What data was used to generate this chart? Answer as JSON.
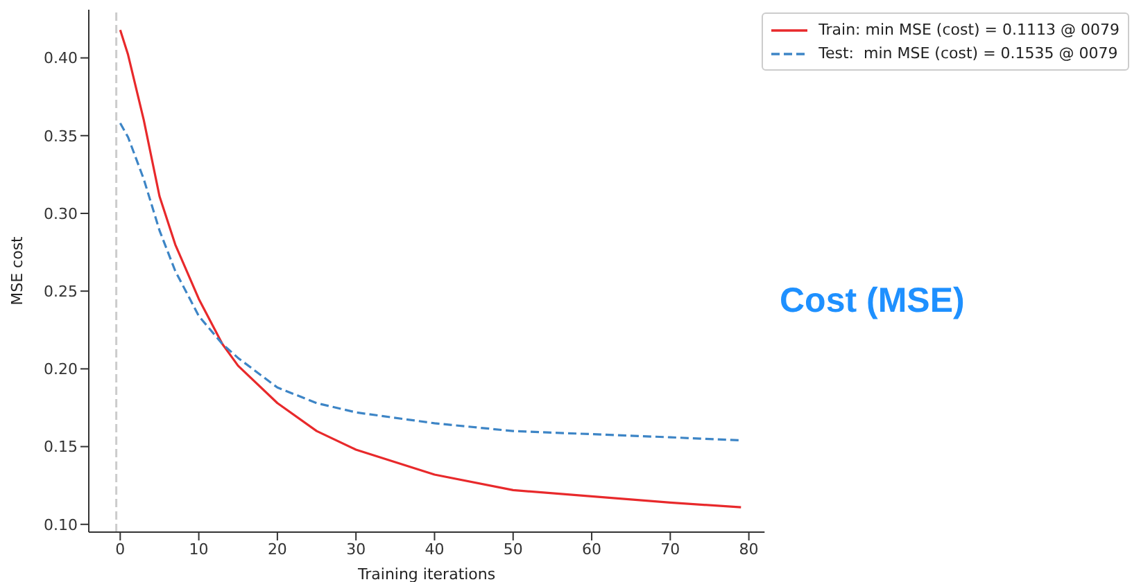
{
  "chart_data": {
    "type": "line",
    "xlabel": "Training iterations",
    "ylabel": "MSE cost",
    "xlim": [
      -4,
      82
    ],
    "xticks": [
      0,
      10,
      20,
      30,
      40,
      50,
      60,
      70,
      80
    ],
    "ylim": [
      0.095,
      0.431
    ],
    "yticks": [
      {
        "value": 0.1,
        "label": "0.10"
      },
      {
        "value": 0.15,
        "label": "0.15"
      },
      {
        "value": 0.2,
        "label": "0.20"
      },
      {
        "value": 0.25,
        "label": "0.25"
      },
      {
        "value": 0.3,
        "label": "0.30"
      },
      {
        "value": 0.35,
        "label": "0.35"
      },
      {
        "value": 0.4,
        "label": "0.40"
      }
    ],
    "grid": false,
    "legend": "top right",
    "marker": "none",
    "ref_lines": [
      {
        "axis": "x",
        "value": -0.5,
        "color": "#cccccc",
        "line_style": "dashed"
      }
    ],
    "annotations": [
      "Cost (MSE)"
    ],
    "series": [
      {
        "name": "Train: min MSE (cost) = 0.1113 @ 0079",
        "color": "#e8292b",
        "line_style": "solid",
        "x": [
          0,
          1,
          3,
          5,
          7,
          10,
          13,
          15,
          20,
          25,
          30,
          40,
          50,
          60,
          70,
          79
        ],
        "values": [
          0.418,
          0.402,
          0.36,
          0.311,
          0.28,
          0.245,
          0.216,
          0.202,
          0.178,
          0.16,
          0.148,
          0.132,
          0.122,
          0.118,
          0.114,
          0.111
        ]
      },
      {
        "name": "Test:  min MSE (cost) = 0.1535 @ 0079",
        "color": "#3d85c6",
        "line_style": "dashed",
        "x": [
          0,
          1,
          3,
          5,
          7,
          10,
          13,
          15,
          20,
          25,
          30,
          40,
          50,
          60,
          70,
          79
        ],
        "values": [
          0.358,
          0.349,
          0.322,
          0.289,
          0.263,
          0.234,
          0.216,
          0.207,
          0.188,
          0.178,
          0.172,
          0.165,
          0.16,
          0.158,
          0.156,
          0.154
        ]
      }
    ]
  }
}
